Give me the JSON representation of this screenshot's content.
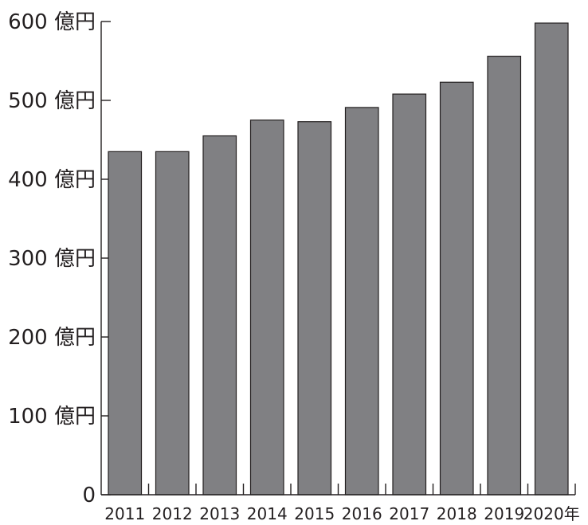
{
  "chart_data": {
    "type": "bar",
    "categories": [
      "2011",
      "2012",
      "2013",
      "2014",
      "2015",
      "2016",
      "2017",
      "2018",
      "2019",
      "2020年"
    ],
    "values": [
      435,
      435,
      455,
      475,
      473,
      491,
      508,
      523,
      556,
      598
    ],
    "ylim": [
      0,
      600
    ],
    "yticks": [
      0,
      100,
      200,
      300,
      400,
      500,
      600
    ],
    "ytick_labels": [
      "0",
      "100 億円",
      "200 億円",
      "300 億円",
      "400 億円",
      "500 億円",
      "600 億円"
    ],
    "grid": false,
    "colors": {
      "bar_fill": "#808083",
      "bar_edge": "#231f20",
      "axis": "#231f20"
    }
  }
}
